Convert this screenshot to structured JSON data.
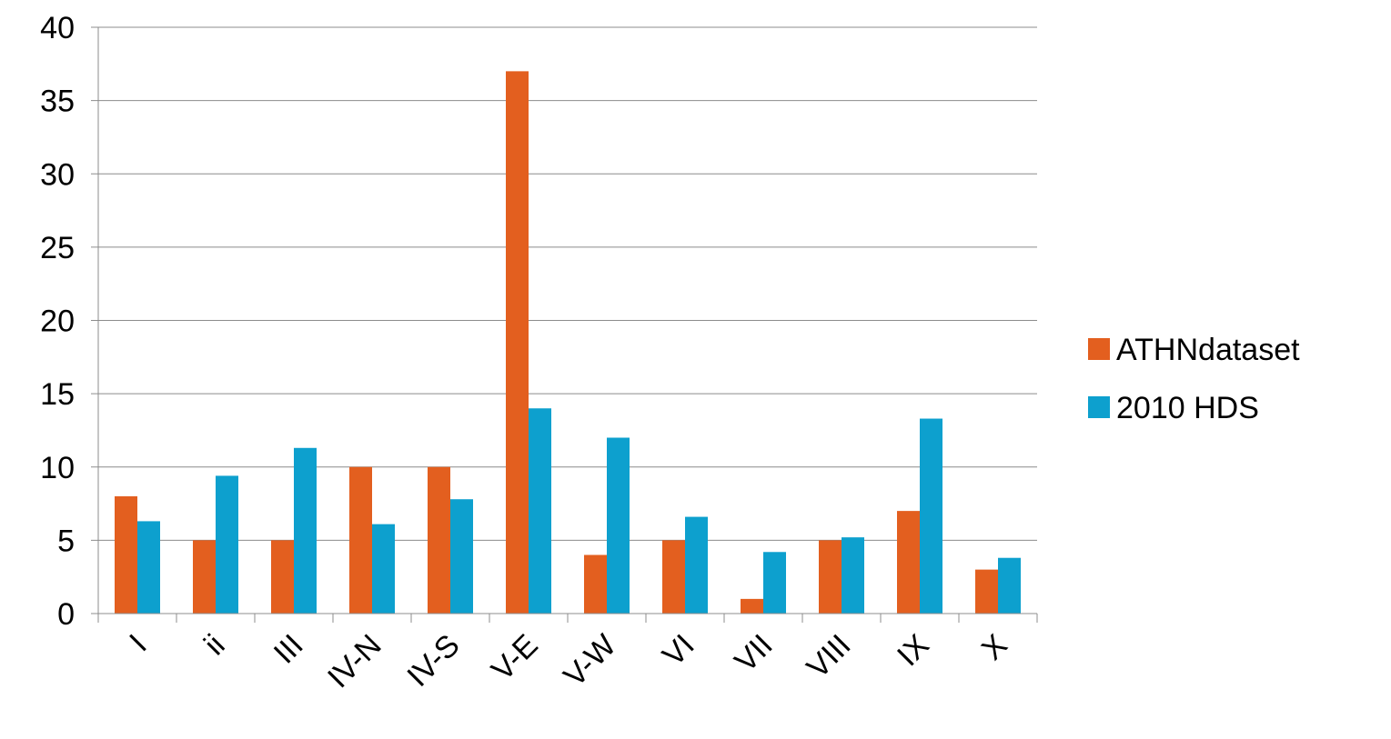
{
  "chart_data": {
    "type": "bar",
    "title": "",
    "xlabel": "",
    "ylabel": "",
    "categories": [
      "I",
      "ii",
      "III",
      "IV-N",
      "IV-S",
      "V-E",
      "V-W",
      "VI",
      "VII",
      "VIII",
      "IX",
      "X"
    ],
    "series": [
      {
        "name": "ATHNdataset",
        "color": "#E35F1F",
        "values": [
          8,
          5,
          5,
          10,
          10,
          37,
          4,
          5,
          1,
          5,
          7,
          3
        ]
      },
      {
        "name": "2010 HDS",
        "color": "#0DA0CE",
        "values": [
          6.3,
          9.4,
          11.3,
          6.1,
          7.8,
          14,
          12,
          6.6,
          4.2,
          5.2,
          13.3,
          3.8
        ]
      }
    ],
    "ylim": [
      0,
      40
    ],
    "yticks": [
      0,
      5,
      10,
      15,
      20,
      25,
      30,
      35,
      40
    ],
    "grid": true,
    "legend_position": "right"
  }
}
